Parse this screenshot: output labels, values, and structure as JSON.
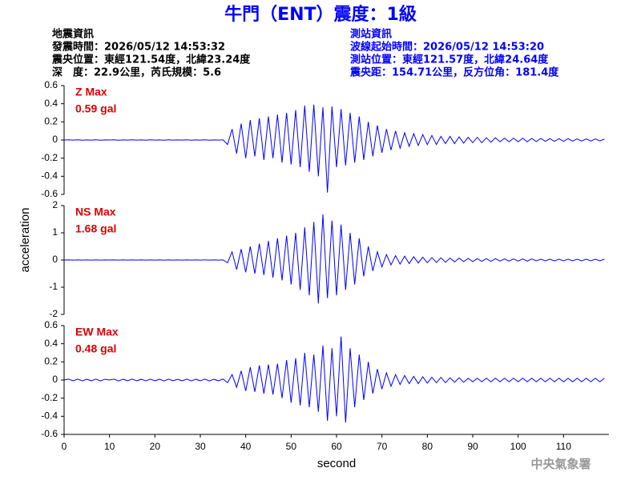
{
  "header": {
    "title": "牛門（ENT）震度：1級",
    "left": [
      "地震資訊",
      "發震時間：2026/05/12 14:53:32",
      "震央位置：東經121.54度，北緯23.24度",
      "深　度：22.9公里，芮氏規模：5.6"
    ],
    "right": [
      "測站資訊",
      "波線起始時間：2026/05/12 14:53:20",
      "測站位置：東經121.57度，北緯24.64度",
      "震央距：154.71公里，反方位角：181.4度"
    ],
    "footer": "中央氣象署"
  },
  "chart_data": [
    {
      "type": "line",
      "label": "Z Max",
      "peak": "0.59 gal",
      "color": "#0000ff",
      "label_color": "#e00000",
      "xlim": [
        0,
        120
      ],
      "ylim": [
        -0.6,
        0.6
      ],
      "yticks": [
        -0.6,
        -0.4,
        -0.2,
        0,
        0.2,
        0.4,
        0.6
      ],
      "x": [
        0,
        1,
        2,
        3,
        4,
        5,
        6,
        7,
        8,
        9,
        10,
        11,
        12,
        13,
        14,
        15,
        16,
        17,
        18,
        19,
        20,
        21,
        22,
        23,
        24,
        25,
        26,
        27,
        28,
        29,
        30,
        31,
        32,
        33,
        34,
        35,
        36,
        37,
        38,
        39,
        40,
        41,
        42,
        43,
        44,
        45,
        46,
        47,
        48,
        49,
        50,
        51,
        52,
        53,
        54,
        55,
        56,
        57,
        58,
        59,
        60,
        61,
        62,
        63,
        64,
        65,
        66,
        67,
        68,
        69,
        70,
        71,
        72,
        73,
        74,
        75,
        76,
        77,
        78,
        79,
        80,
        81,
        82,
        83,
        84,
        85,
        86,
        87,
        88,
        89,
        90,
        91,
        92,
        93,
        94,
        95,
        96,
        97,
        98,
        99,
        100,
        101,
        102,
        103,
        104,
        105,
        106,
        107,
        108,
        109,
        110,
        111,
        112,
        113,
        114,
        115,
        116,
        117,
        118,
        119
      ],
      "values": [
        0,
        0.002,
        -0.001,
        0.002,
        -0.002,
        0.001,
        -0.001,
        0.002,
        -0.002,
        0.001,
        0,
        0.002,
        -0.002,
        0.001,
        -0.001,
        0.002,
        -0.001,
        0.001,
        -0.002,
        0.002,
        -0.001,
        0.001,
        -0.002,
        0.002,
        -0.001,
        0.001,
        -0.001,
        0.002,
        -0.002,
        0.001,
        -0.001,
        0.002,
        -0.002,
        0.001,
        -0.001,
        0.002,
        -0.05,
        0.12,
        -0.15,
        0.18,
        -0.2,
        0.22,
        -0.18,
        0.24,
        -0.22,
        0.26,
        -0.2,
        0.28,
        -0.25,
        0.3,
        -0.27,
        0.33,
        -0.3,
        0.38,
        -0.35,
        0.39,
        -0.4,
        0.36,
        -0.58,
        0.37,
        -0.3,
        0.34,
        -0.28,
        0.3,
        -0.25,
        0.26,
        -0.22,
        0.2,
        -0.18,
        0.16,
        -0.14,
        0.12,
        -0.11,
        0.1,
        -0.09,
        0.08,
        -0.07,
        0.07,
        -0.06,
        0.06,
        -0.05,
        0.05,
        -0.05,
        0.04,
        -0.04,
        0.04,
        -0.04,
        0.035,
        -0.035,
        0.03,
        -0.03,
        0.03,
        -0.03,
        0.025,
        -0.025,
        0.025,
        -0.02,
        0.02,
        -0.02,
        0.02,
        -0.02,
        0.02,
        -0.02,
        0.018,
        -0.018,
        0.018,
        -0.015,
        0.015,
        -0.015,
        0.015,
        -0.015,
        0.015,
        -0.012,
        0.012,
        -0.012,
        0.012,
        -0.012,
        0.012,
        -0.01,
        0.01
      ]
    },
    {
      "type": "line",
      "label": "NS Max",
      "peak": "1.68 gal",
      "color": "#0000ff",
      "label_color": "#e00000",
      "ylabel": "acceleration",
      "xlim": [
        0,
        120
      ],
      "ylim": [
        -2,
        2
      ],
      "yticks": [
        -2,
        -1,
        0,
        1,
        2
      ],
      "x": [
        0,
        1,
        2,
        3,
        4,
        5,
        6,
        7,
        8,
        9,
        10,
        11,
        12,
        13,
        14,
        15,
        16,
        17,
        18,
        19,
        20,
        21,
        22,
        23,
        24,
        25,
        26,
        27,
        28,
        29,
        30,
        31,
        32,
        33,
        34,
        35,
        36,
        37,
        38,
        39,
        40,
        41,
        42,
        43,
        44,
        45,
        46,
        47,
        48,
        49,
        50,
        51,
        52,
        53,
        54,
        55,
        56,
        57,
        58,
        59,
        60,
        61,
        62,
        63,
        64,
        65,
        66,
        67,
        68,
        69,
        70,
        71,
        72,
        73,
        74,
        75,
        76,
        77,
        78,
        79,
        80,
        81,
        82,
        83,
        84,
        85,
        86,
        87,
        88,
        89,
        90,
        91,
        92,
        93,
        94,
        95,
        96,
        97,
        98,
        99,
        100,
        101,
        102,
        103,
        104,
        105,
        106,
        107,
        108,
        109,
        110,
        111,
        112,
        113,
        114,
        115,
        116,
        117,
        118,
        119
      ],
      "values": [
        0,
        0.005,
        -0.004,
        0.005,
        -0.005,
        0.004,
        -0.004,
        0.005,
        -0.005,
        0.004,
        0,
        0.005,
        -0.005,
        0.004,
        -0.004,
        0.005,
        -0.004,
        0.004,
        -0.005,
        0.005,
        -0.004,
        0.004,
        -0.005,
        0.005,
        -0.004,
        0.004,
        -0.004,
        0.005,
        -0.005,
        0.004,
        -0.004,
        0.005,
        -0.005,
        0.004,
        -0.004,
        0.005,
        -0.1,
        0.3,
        -0.35,
        0.4,
        -0.45,
        0.5,
        -0.5,
        0.6,
        -0.55,
        0.7,
        -0.65,
        0.8,
        -0.75,
        0.9,
        -0.9,
        1.0,
        -1.1,
        1.2,
        -1.3,
        1.4,
        -1.6,
        1.68,
        -1.4,
        1.45,
        -1.3,
        1.3,
        -1.1,
        1.0,
        -0.9,
        0.8,
        -0.6,
        0.5,
        -0.4,
        0.3,
        -0.25,
        0.2,
        -0.18,
        0.16,
        -0.15,
        0.14,
        -0.13,
        0.12,
        -0.11,
        0.1,
        -0.1,
        0.09,
        -0.09,
        0.08,
        -0.08,
        0.07,
        -0.07,
        0.07,
        -0.06,
        0.06,
        -0.06,
        0.05,
        -0.05,
        0.05,
        -0.05,
        0.05,
        -0.04,
        0.04,
        -0.04,
        0.04,
        -0.04,
        0.04,
        -0.04,
        0.04,
        -0.03,
        0.03,
        -0.03,
        0.03,
        -0.03,
        0.03,
        -0.03,
        0.03,
        -0.03,
        0.03,
        -0.03,
        0.03,
        -0.03,
        0.03,
        -0.03,
        0.03
      ]
    },
    {
      "type": "line",
      "label": "EW Max",
      "peak": "0.48 gal",
      "color": "#0000ff",
      "label_color": "#e00000",
      "xlabel": "second",
      "xlim": [
        0,
        120
      ],
      "xticks": [
        0,
        10,
        20,
        30,
        40,
        50,
        60,
        70,
        80,
        90,
        100,
        110
      ],
      "ylim": [
        -0.6,
        0.6
      ],
      "yticks": [
        -0.6,
        -0.4,
        -0.2,
        0,
        0.2,
        0.4,
        0.6
      ],
      "x": [
        0,
        1,
        2,
        3,
        4,
        5,
        6,
        7,
        8,
        9,
        10,
        11,
        12,
        13,
        14,
        15,
        16,
        17,
        18,
        19,
        20,
        21,
        22,
        23,
        24,
        25,
        26,
        27,
        28,
        29,
        30,
        31,
        32,
        33,
        34,
        35,
        36,
        37,
        38,
        39,
        40,
        41,
        42,
        43,
        44,
        45,
        46,
        47,
        48,
        49,
        50,
        51,
        52,
        53,
        54,
        55,
        56,
        57,
        58,
        59,
        60,
        61,
        62,
        63,
        64,
        65,
        66,
        67,
        68,
        69,
        70,
        71,
        72,
        73,
        74,
        75,
        76,
        77,
        78,
        79,
        80,
        81,
        82,
        83,
        84,
        85,
        86,
        87,
        88,
        89,
        90,
        91,
        92,
        93,
        94,
        95,
        96,
        97,
        98,
        99,
        100,
        101,
        102,
        103,
        104,
        105,
        106,
        107,
        108,
        109,
        110,
        111,
        112,
        113,
        114,
        115,
        116,
        117,
        118,
        119
      ],
      "values": [
        0,
        0.01,
        -0.008,
        0.01,
        -0.01,
        0.008,
        -0.008,
        0.01,
        -0.01,
        0.008,
        0,
        0.01,
        -0.01,
        0.008,
        -0.008,
        0.01,
        -0.008,
        0.008,
        -0.01,
        0.01,
        -0.008,
        0.008,
        -0.01,
        0.01,
        -0.008,
        0.008,
        -0.008,
        0.01,
        -0.01,
        0.008,
        -0.008,
        0.01,
        -0.01,
        0.008,
        -0.008,
        0.01,
        -0.03,
        0.06,
        -0.08,
        0.1,
        -0.12,
        0.14,
        -0.13,
        0.16,
        -0.15,
        0.17,
        -0.16,
        0.18,
        -0.2,
        0.22,
        -0.25,
        0.24,
        -0.28,
        0.3,
        -0.3,
        0.28,
        -0.35,
        0.38,
        -0.45,
        0.35,
        -0.4,
        0.48,
        -0.47,
        0.35,
        -0.3,
        0.28,
        -0.22,
        0.2,
        -0.15,
        0.12,
        -0.1,
        0.08,
        -0.07,
        0.06,
        -0.05,
        0.05,
        -0.04,
        0.04,
        -0.04,
        0.035,
        -0.035,
        0.03,
        -0.03,
        0.03,
        -0.03,
        0.025,
        -0.025,
        0.025,
        -0.025,
        0.02,
        -0.02,
        0.02,
        -0.02,
        0.02,
        -0.02,
        0.02,
        -0.02,
        0.02,
        -0.02,
        0.02,
        -0.02,
        0.02,
        -0.02,
        0.02,
        -0.02,
        0.02,
        -0.02,
        0.02,
        -0.02,
        0.02,
        -0.02,
        0.02,
        -0.02,
        0.02,
        -0.02,
        0.02,
        -0.02,
        0.02,
        -0.02,
        0.02
      ]
    }
  ]
}
